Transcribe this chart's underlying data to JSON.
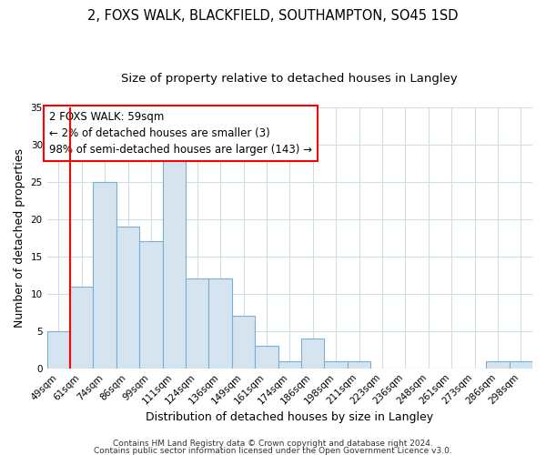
{
  "title1": "2, FOXS WALK, BLACKFIELD, SOUTHAMPTON, SO45 1SD",
  "title2": "Size of property relative to detached houses in Langley",
  "xlabel": "Distribution of detached houses by size in Langley",
  "ylabel": "Number of detached properties",
  "categories": [
    "49sqm",
    "61sqm",
    "74sqm",
    "86sqm",
    "99sqm",
    "111sqm",
    "124sqm",
    "136sqm",
    "149sqm",
    "161sqm",
    "174sqm",
    "186sqm",
    "198sqm",
    "211sqm",
    "223sqm",
    "236sqm",
    "248sqm",
    "261sqm",
    "273sqm",
    "286sqm",
    "298sqm"
  ],
  "values": [
    5,
    11,
    25,
    19,
    17,
    28,
    12,
    12,
    7,
    3,
    1,
    4,
    1,
    1,
    0,
    0,
    0,
    0,
    0,
    1,
    1
  ],
  "bar_color": "#d6e4f0",
  "bar_edge_color": "#7aafd4",
  "red_line_index": 1,
  "annotation_line1": "2 FOXS WALK: 59sqm",
  "annotation_line2": "← 2% of detached houses are smaller (3)",
  "annotation_line3": "98% of semi-detached houses are larger (143) →",
  "ylim": [
    0,
    35
  ],
  "yticks": [
    0,
    5,
    10,
    15,
    20,
    25,
    30,
    35
  ],
  "footer1": "Contains HM Land Registry data © Crown copyright and database right 2024.",
  "footer2": "Contains public sector information licensed under the Open Government Licence v3.0.",
  "background_color": "#ffffff",
  "grid_color": "#d0dce8",
  "title_fontsize": 10.5,
  "subtitle_fontsize": 9.5,
  "axis_label_fontsize": 9,
  "tick_fontsize": 7.5,
  "annotation_fontsize": 8.5,
  "footer_fontsize": 6.5
}
